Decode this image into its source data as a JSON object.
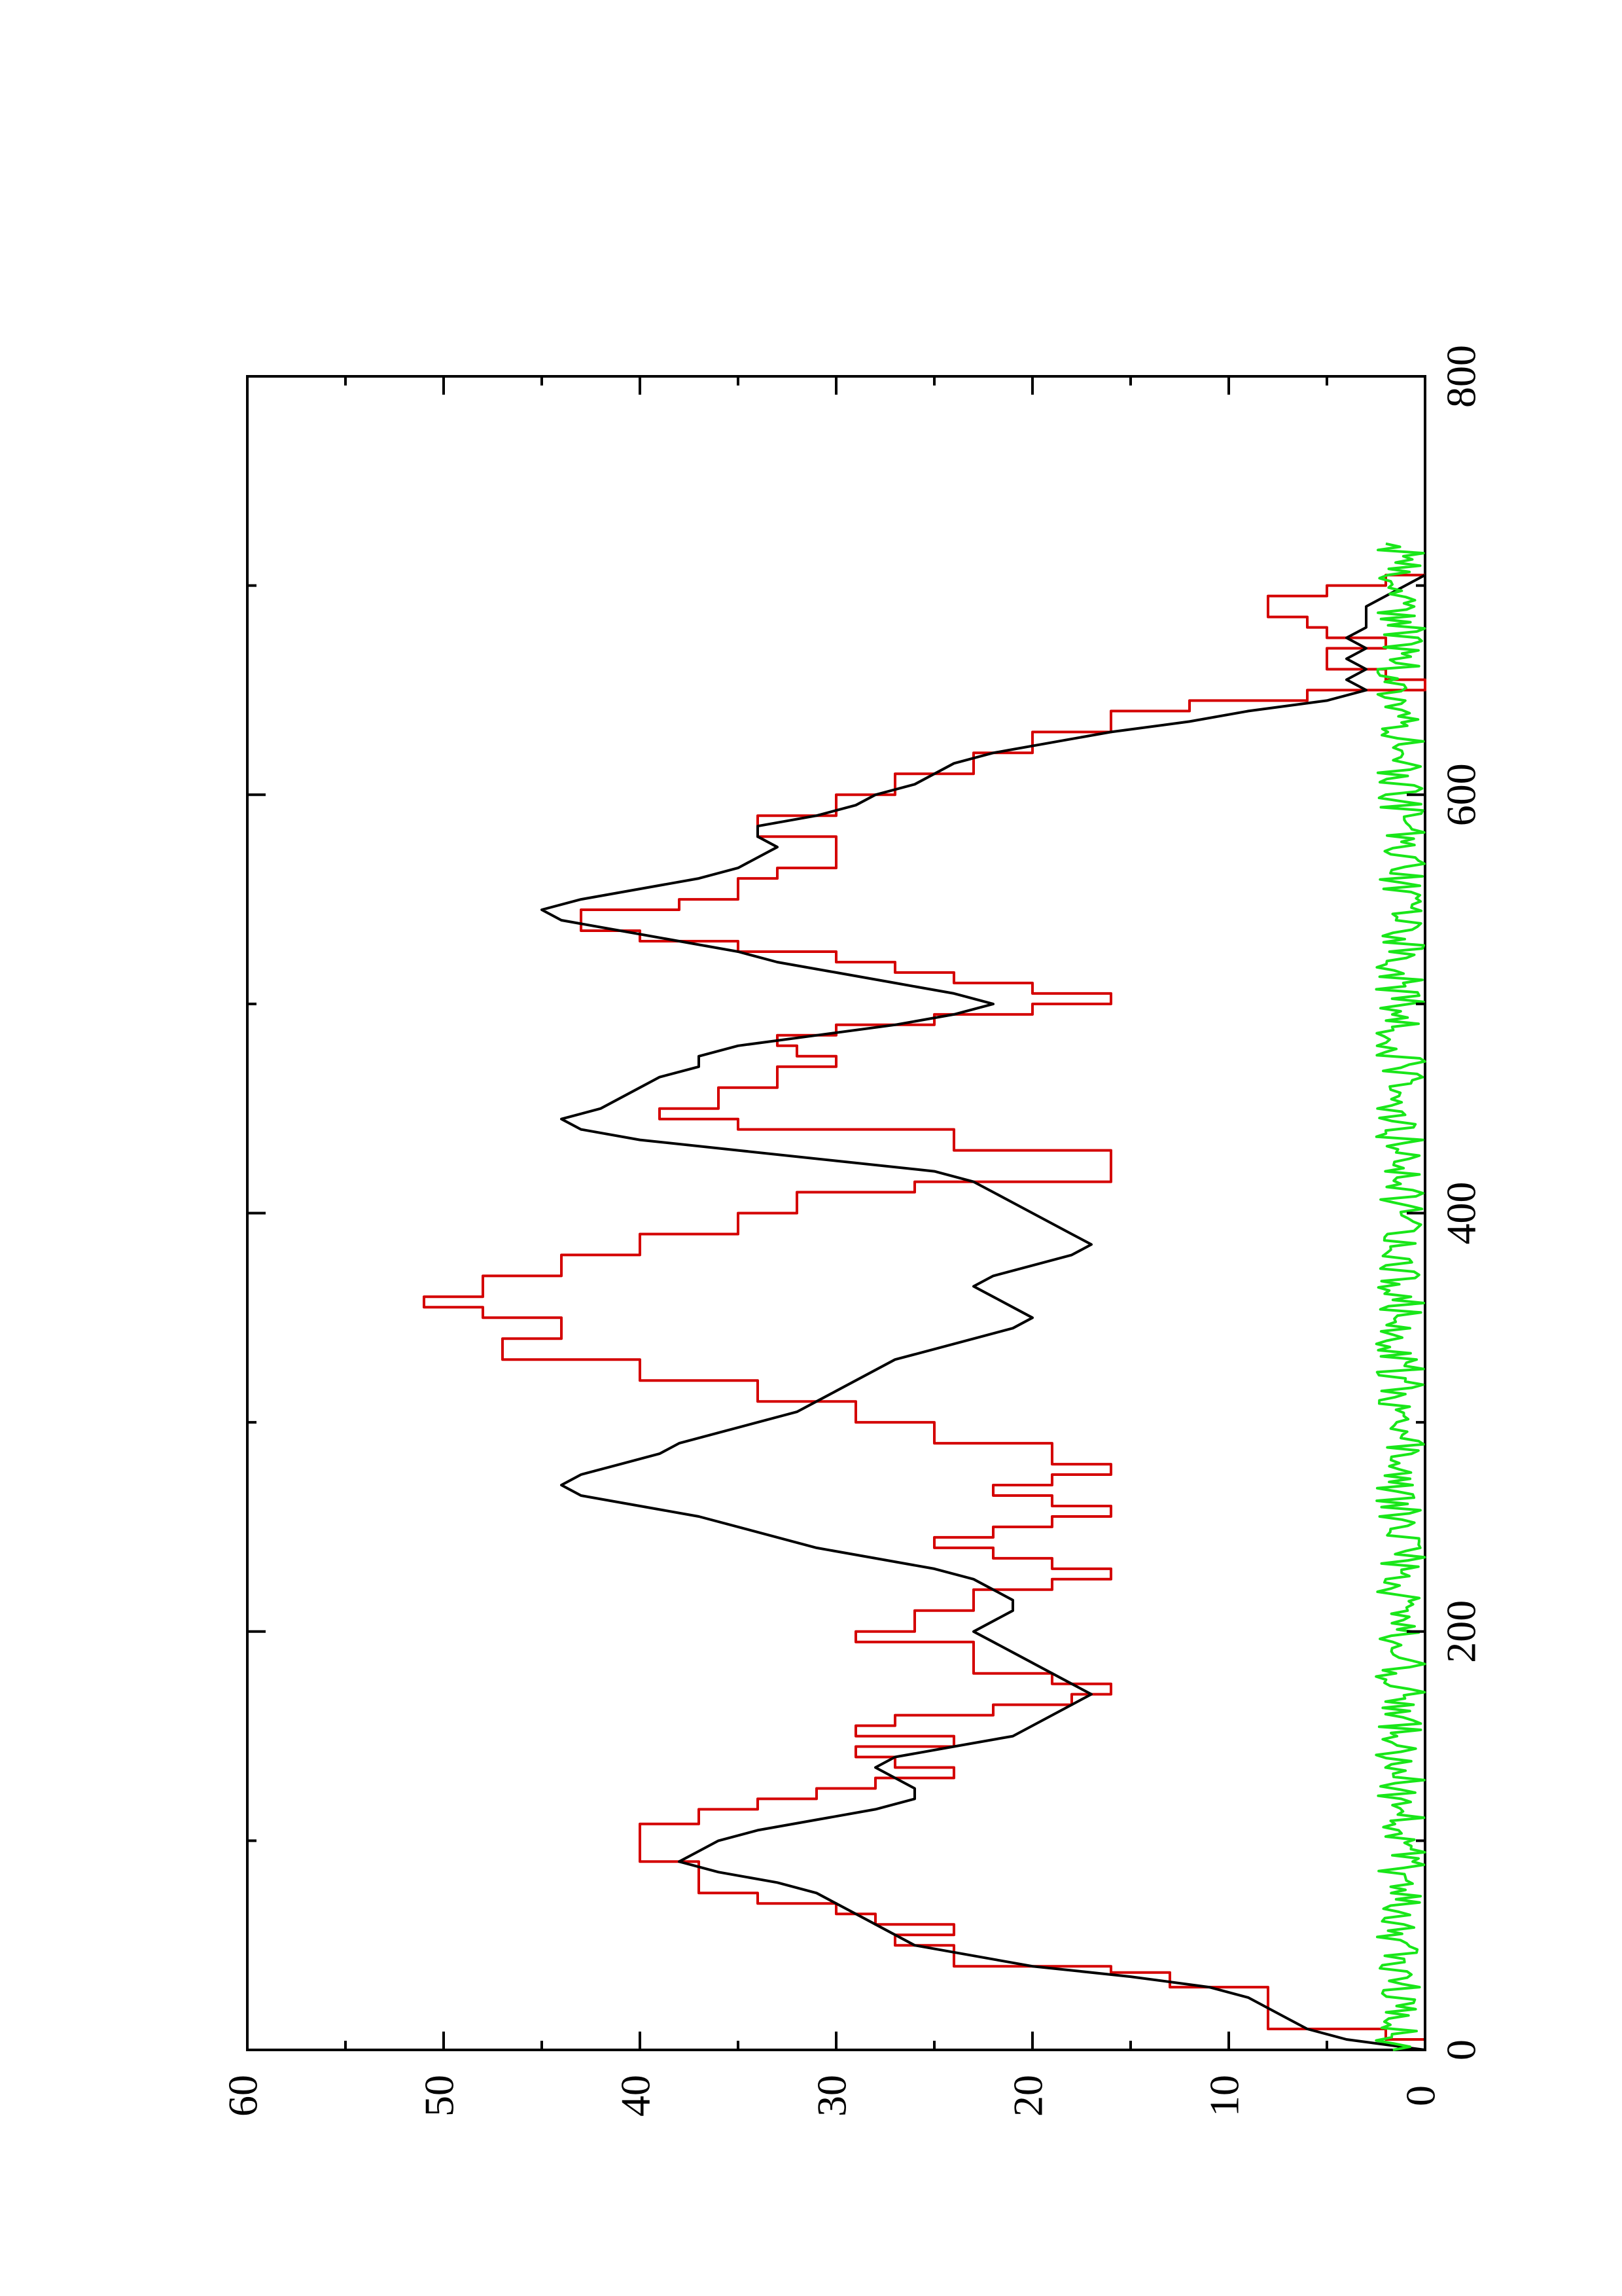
{
  "chart_data": {
    "type": "line",
    "orientation": "rotated 90 degrees counter-clockwise",
    "title": "",
    "xlabel": "",
    "ylabel": "",
    "xlim": [
      0,
      800
    ],
    "ylim": [
      0,
      60
    ],
    "x_ticks": [
      0,
      200,
      400,
      600,
      800
    ],
    "x_tick_labels": [
      "0",
      "200",
      "400",
      "600",
      "800"
    ],
    "y_ticks": [
      0,
      10,
      20,
      30,
      40,
      50,
      60
    ],
    "y_tick_labels": [
      "0",
      "10",
      "20",
      "30",
      "40",
      "50",
      "60"
    ],
    "grid": false,
    "legend": "none",
    "series": [
      {
        "color": "#d40000",
        "style": "step",
        "points": [
          [
            0,
            0
          ],
          [
            5,
            2
          ],
          [
            10,
            8
          ],
          [
            20,
            8
          ],
          [
            30,
            13
          ],
          [
            37,
            16
          ],
          [
            40,
            24
          ],
          [
            48,
            24
          ],
          [
            50,
            27
          ],
          [
            55,
            24
          ],
          [
            60,
            28
          ],
          [
            65,
            30
          ],
          [
            70,
            34
          ],
          [
            75,
            37
          ],
          [
            85,
            37
          ],
          [
            90,
            40
          ],
          [
            100,
            40
          ],
          [
            108,
            37
          ],
          [
            115,
            34
          ],
          [
            120,
            31
          ],
          [
            125,
            28
          ],
          [
            130,
            24
          ],
          [
            135,
            27
          ],
          [
            140,
            29
          ],
          [
            145,
            24
          ],
          [
            150,
            29
          ],
          [
            155,
            27
          ],
          [
            160,
            22
          ],
          [
            165,
            18
          ],
          [
            170,
            16
          ],
          [
            175,
            19
          ],
          [
            180,
            23
          ],
          [
            190,
            23
          ],
          [
            195,
            29
          ],
          [
            200,
            26
          ],
          [
            210,
            23
          ],
          [
            215,
            23
          ],
          [
            220,
            19
          ],
          [
            225,
            16
          ],
          [
            230,
            19
          ],
          [
            235,
            22
          ],
          [
            240,
            25
          ],
          [
            245,
            22
          ],
          [
            250,
            19
          ],
          [
            255,
            16
          ],
          [
            260,
            19
          ],
          [
            265,
            22
          ],
          [
            270,
            19
          ],
          [
            275,
            16
          ],
          [
            280,
            19
          ],
          [
            290,
            25
          ],
          [
            300,
            29
          ],
          [
            310,
            34
          ],
          [
            320,
            40
          ],
          [
            330,
            47
          ],
          [
            335,
            47
          ],
          [
            340,
            44
          ],
          [
            350,
            48
          ],
          [
            355,
            51
          ],
          [
            360,
            48
          ],
          [
            365,
            48
          ],
          [
            370,
            44
          ],
          [
            380,
            40
          ],
          [
            390,
            35
          ],
          [
            400,
            32
          ],
          [
            410,
            26
          ],
          [
            415,
            16
          ],
          [
            420,
            16
          ],
          [
            430,
            24
          ],
          [
            440,
            35
          ],
          [
            445,
            39
          ],
          [
            450,
            36
          ],
          [
            460,
            33
          ],
          [
            470,
            30
          ],
          [
            475,
            32
          ],
          [
            480,
            33
          ],
          [
            485,
            30
          ],
          [
            490,
            25
          ],
          [
            495,
            20
          ],
          [
            500,
            16
          ],
          [
            505,
            20
          ],
          [
            510,
            24
          ],
          [
            515,
            27
          ],
          [
            520,
            30
          ],
          [
            525,
            35
          ],
          [
            530,
            40
          ],
          [
            535,
            43
          ],
          [
            540,
            43
          ],
          [
            545,
            38
          ],
          [
            550,
            35
          ],
          [
            560,
            33
          ],
          [
            565,
            30
          ],
          [
            570,
            30
          ],
          [
            580,
            34
          ],
          [
            590,
            30
          ],
          [
            600,
            27
          ],
          [
            610,
            23
          ],
          [
            620,
            20
          ],
          [
            630,
            16
          ],
          [
            640,
            12
          ],
          [
            645,
            6
          ],
          [
            650,
            0
          ],
          [
            655,
            2
          ],
          [
            660,
            5
          ],
          [
            665,
            5
          ],
          [
            670,
            2
          ],
          [
            675,
            5
          ],
          [
            680,
            6
          ],
          [
            685,
            8
          ],
          [
            690,
            8
          ],
          [
            695,
            5
          ],
          [
            700,
            2
          ],
          [
            705,
            0
          ]
        ]
      },
      {
        "color": "#000000",
        "style": "line",
        "points": [
          [
            0,
            0
          ],
          [
            5,
            4
          ],
          [
            10,
            6
          ],
          [
            15,
            7
          ],
          [
            20,
            8
          ],
          [
            25,
            9
          ],
          [
            30,
            11
          ],
          [
            35,
            15
          ],
          [
            40,
            20
          ],
          [
            45,
            23
          ],
          [
            50,
            26
          ],
          [
            55,
            27
          ],
          [
            60,
            28
          ],
          [
            65,
            29
          ],
          [
            70,
            30
          ],
          [
            75,
            31
          ],
          [
            80,
            33
          ],
          [
            85,
            36
          ],
          [
            90,
            38
          ],
          [
            95,
            37
          ],
          [
            100,
            36
          ],
          [
            105,
            34
          ],
          [
            110,
            31
          ],
          [
            115,
            28
          ],
          [
            120,
            26
          ],
          [
            125,
            26
          ],
          [
            130,
            27
          ],
          [
            135,
            28
          ],
          [
            140,
            27
          ],
          [
            145,
            24
          ],
          [
            150,
            21
          ],
          [
            155,
            20
          ],
          [
            160,
            19
          ],
          [
            165,
            18
          ],
          [
            170,
            17
          ],
          [
            175,
            18
          ],
          [
            180,
            19
          ],
          [
            185,
            20
          ],
          [
            190,
            21
          ],
          [
            195,
            22
          ],
          [
            200,
            23
          ],
          [
            205,
            22
          ],
          [
            210,
            21
          ],
          [
            215,
            21
          ],
          [
            220,
            22
          ],
          [
            225,
            23
          ],
          [
            230,
            25
          ],
          [
            235,
            28
          ],
          [
            240,
            31
          ],
          [
            245,
            33
          ],
          [
            250,
            35
          ],
          [
            255,
            37
          ],
          [
            260,
            40
          ],
          [
            265,
            43
          ],
          [
            270,
            44
          ],
          [
            275,
            43
          ],
          [
            280,
            41
          ],
          [
            285,
            39
          ],
          [
            290,
            38
          ],
          [
            295,
            36
          ],
          [
            300,
            34
          ],
          [
            305,
            32
          ],
          [
            310,
            31
          ],
          [
            315,
            30
          ],
          [
            320,
            29
          ],
          [
            325,
            28
          ],
          [
            330,
            27
          ],
          [
            335,
            25
          ],
          [
            340,
            23
          ],
          [
            345,
            21
          ],
          [
            350,
            20
          ],
          [
            355,
            21
          ],
          [
            360,
            22
          ],
          [
            365,
            23
          ],
          [
            370,
            22
          ],
          [
            375,
            20
          ],
          [
            380,
            18
          ],
          [
            385,
            17
          ],
          [
            390,
            18
          ],
          [
            395,
            19
          ],
          [
            400,
            20
          ],
          [
            405,
            21
          ],
          [
            410,
            22
          ],
          [
            415,
            23
          ],
          [
            420,
            25
          ],
          [
            425,
            30
          ],
          [
            430,
            35
          ],
          [
            435,
            40
          ],
          [
            440,
            43
          ],
          [
            445,
            44
          ],
          [
            450,
            42
          ],
          [
            455,
            41
          ],
          [
            460,
            40
          ],
          [
            465,
            39
          ],
          [
            470,
            37
          ],
          [
            475,
            37
          ],
          [
            480,
            35
          ],
          [
            485,
            31
          ],
          [
            490,
            27
          ],
          [
            495,
            24
          ],
          [
            500,
            22
          ],
          [
            505,
            24
          ],
          [
            510,
            27
          ],
          [
            515,
            30
          ],
          [
            520,
            33
          ],
          [
            525,
            35
          ],
          [
            530,
            38
          ],
          [
            535,
            41
          ],
          [
            540,
            44
          ],
          [
            545,
            45
          ],
          [
            550,
            43
          ],
          [
            555,
            40
          ],
          [
            560,
            37
          ],
          [
            565,
            35
          ],
          [
            570,
            34
          ],
          [
            575,
            33
          ],
          [
            580,
            34
          ],
          [
            585,
            34
          ],
          [
            590,
            31
          ],
          [
            595,
            29
          ],
          [
            600,
            28
          ],
          [
            605,
            26
          ],
          [
            610,
            25
          ],
          [
            615,
            24
          ],
          [
            620,
            22
          ],
          [
            625,
            19
          ],
          [
            630,
            16
          ],
          [
            635,
            12
          ],
          [
            640,
            9
          ],
          [
            645,
            5
          ],
          [
            650,
            3
          ],
          [
            655,
            4
          ],
          [
            660,
            3
          ],
          [
            665,
            4
          ],
          [
            670,
            3
          ],
          [
            675,
            4
          ],
          [
            680,
            3
          ],
          [
            685,
            3
          ],
          [
            690,
            3
          ],
          [
            695,
            2
          ],
          [
            700,
            1
          ],
          [
            705,
            0
          ]
        ]
      },
      {
        "color": "#19e619",
        "style": "noise",
        "x_range": [
          0,
          720
        ],
        "y_range": [
          0,
          2.5
        ],
        "step": 1.5
      }
    ]
  }
}
